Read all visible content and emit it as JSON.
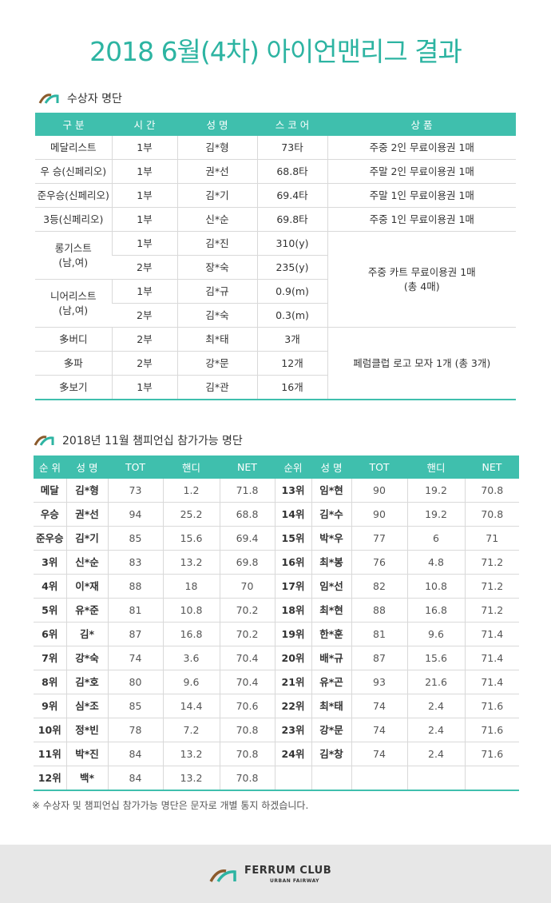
{
  "title": "2018 6월(4차) 아이언맨리그 결과",
  "awards": {
    "heading": "수상자 명단",
    "columns": [
      "구 분",
      "시 간",
      "성 명",
      "스 코 어",
      "상 품"
    ],
    "rows": [
      [
        "메달리스트",
        "1부",
        "김*형",
        "73타",
        "주중 2인 무료이용권 1매"
      ],
      [
        "우 승(신페리오)",
        "1부",
        "권*선",
        "68.8타",
        "주말 2인 무료이용권 1매"
      ],
      [
        "준우승(신페리오)",
        "1부",
        "김*기",
        "69.4타",
        "주말 1인 무료이용권 1매"
      ],
      [
        "3등(신페리오)",
        "1부",
        "신*순",
        "69.8타",
        "주중 1인 무료이용권 1매"
      ]
    ],
    "special": {
      "prize": "주중 카트 무료이용권 1매\n(총 4매)",
      "groups": [
        {
          "category": "롱기스트\n(남,여)",
          "entries": [
            [
              "1부",
              "김*진",
              "310(y)"
            ],
            [
              "2부",
              "장*숙",
              "235(y)"
            ]
          ]
        },
        {
          "category": "니어리스트\n(남,여)",
          "entries": [
            [
              "1부",
              "김*규",
              "0.9(m)"
            ],
            [
              "2부",
              "김*숙",
              "0.3(m)"
            ]
          ]
        }
      ]
    },
    "extra": {
      "prize": "페럼클럽 로고 모자 1개 (총 3개)",
      "rows": [
        [
          "多버디",
          "2부",
          "최*태",
          "3개"
        ],
        [
          "多파",
          "2부",
          "강*문",
          "12개"
        ],
        [
          "多보기",
          "1부",
          "김*관",
          "16개"
        ]
      ]
    }
  },
  "championship": {
    "heading": "2018년 11월 챔피언십 참가가능 명단",
    "columns": [
      "순 위",
      "성 명",
      "TOT",
      "핸디",
      "NET",
      "순위",
      "성 명",
      "TOT",
      "핸디",
      "NET"
    ],
    "left": [
      [
        "메달",
        "김*형",
        73,
        1.2,
        71.8
      ],
      [
        "우승",
        "권*선",
        94,
        25.2,
        68.8
      ],
      [
        "준우승",
        "김*기",
        85,
        15.6,
        69.4
      ],
      [
        "3위",
        "신*순",
        83,
        13.2,
        69.8
      ],
      [
        "4위",
        "이*재",
        88,
        18,
        70
      ],
      [
        "5위",
        "유*준",
        81,
        10.8,
        70.2
      ],
      [
        "6위",
        "김*",
        87,
        16.8,
        70.2
      ],
      [
        "7위",
        "강*숙",
        74,
        3.6,
        70.4
      ],
      [
        "8위",
        "김*호",
        80,
        9.6,
        70.4
      ],
      [
        "9위",
        "심*조",
        85,
        14.4,
        70.6
      ],
      [
        "10위",
        "정*빈",
        78,
        7.2,
        70.8
      ],
      [
        "11위",
        "박*진",
        84,
        13.2,
        70.8
      ],
      [
        "12위",
        "백*",
        84,
        13.2,
        70.8
      ]
    ],
    "right": [
      [
        "13위",
        "임*현",
        90,
        19.2,
        70.8
      ],
      [
        "14위",
        "김*수",
        90,
        19.2,
        70.8
      ],
      [
        "15위",
        "박*우",
        77,
        6,
        71
      ],
      [
        "16위",
        "최*봉",
        76,
        4.8,
        71.2
      ],
      [
        "17위",
        "임*선",
        82,
        10.8,
        71.2
      ],
      [
        "18위",
        "최*현",
        88,
        16.8,
        71.2
      ],
      [
        "19위",
        "한*훈",
        81,
        9.6,
        71.4
      ],
      [
        "20위",
        "배*규",
        87,
        15.6,
        71.4
      ],
      [
        "21위",
        "유*곤",
        93,
        21.6,
        71.4
      ],
      [
        "22위",
        "최*태",
        74,
        2.4,
        71.6
      ],
      [
        "23위",
        "강*문",
        74,
        2.4,
        71.6
      ],
      [
        "24위",
        "김*창",
        74,
        2.4,
        71.6
      ]
    ]
  },
  "footnote": "※ 수상자 및 챔피언십 참가가능 명단은 문자로 개별 통지 하겠습니다.",
  "footer": {
    "brand": "FERRUM CLUB",
    "tagline": "URBAN FAIRWAY"
  }
}
